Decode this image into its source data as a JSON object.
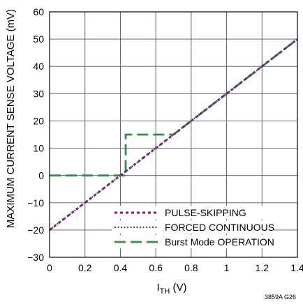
{
  "chart_data": {
    "type": "line",
    "title": "",
    "xlabel": {
      "main": "I",
      "sub": "TH",
      "suffix": " (V)"
    },
    "ylabel": "MAXIMUM CURRENT SENSE VOLTAGE (mV)",
    "xlim": [
      0,
      1.4
    ],
    "ylim": [
      -30,
      60
    ],
    "xticks": [
      0,
      0.2,
      0.4,
      0.6,
      0.8,
      1,
      1.2,
      1.4
    ],
    "xtick_labels": [
      "0",
      "0.2",
      "0.4",
      "0.6",
      "0.8",
      "1",
      "1.2",
      "1.4"
    ],
    "yticks": [
      -30,
      -20,
      -10,
      0,
      10,
      20,
      30,
      40,
      50,
      60
    ],
    "ytick_labels": [
      "−30",
      "−20",
      "−10",
      "0",
      "10",
      "20",
      "30",
      "40",
      "50",
      "60"
    ],
    "grid": true,
    "legend_position": "bottom-right",
    "series": [
      {
        "name": "PULSE-SKIPPING",
        "color": "#8b1a4a",
        "dash": "dotted",
        "x": [
          0,
          1.4
        ],
        "y": [
          -20,
          50
        ]
      },
      {
        "name": "FORCED CONTINUOUS",
        "color": "#3b4aa0",
        "dash": "fine-dotted",
        "x": [
          0,
          1.4
        ],
        "y": [
          -20,
          50
        ]
      },
      {
        "name": "Burst Mode OPERATION",
        "color": "#3a8a4a",
        "dash": "long-dash",
        "x": [
          0,
          0.42,
          0.43,
          0.43,
          0.7,
          0.8,
          1.4
        ],
        "y": [
          0,
          0,
          0,
          15,
          15,
          20,
          50
        ]
      }
    ]
  },
  "figure_code": "3859A G26"
}
